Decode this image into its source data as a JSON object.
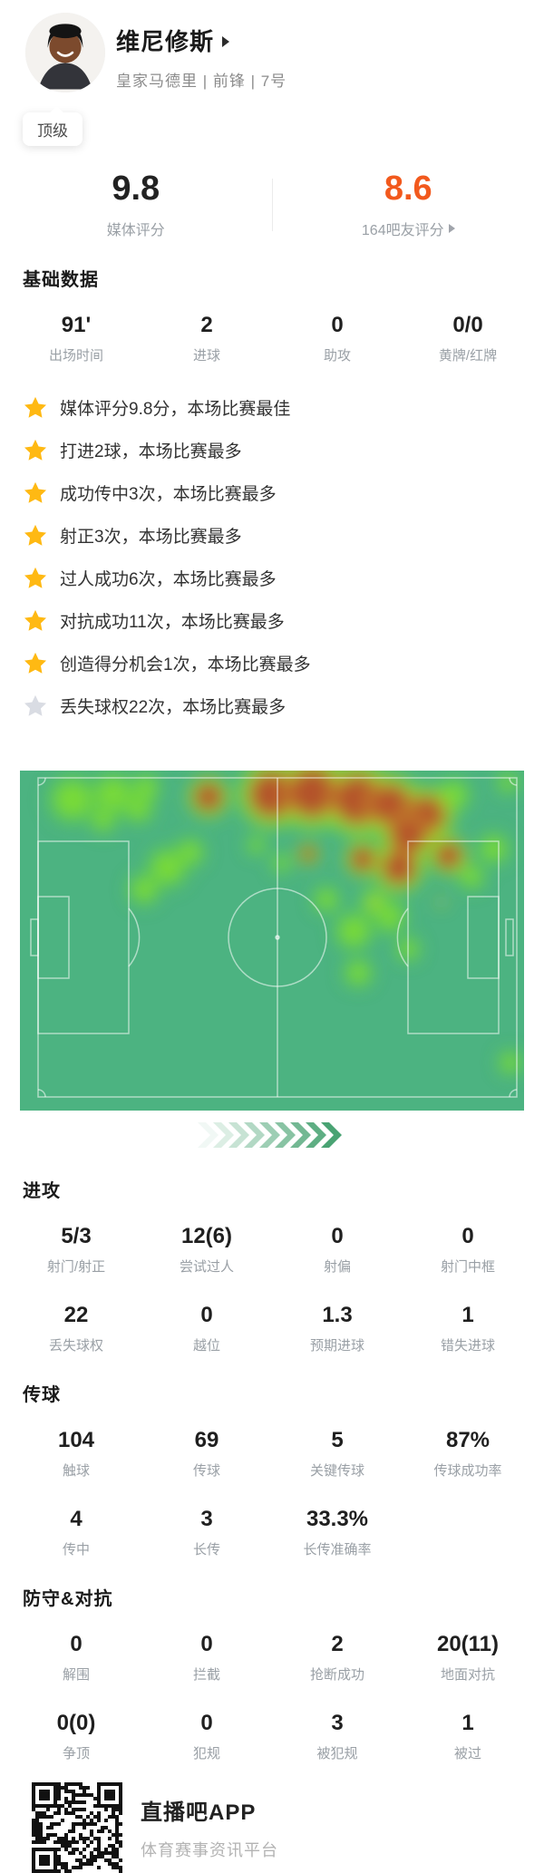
{
  "colors": {
    "accent_orange": "#f2591d",
    "star_gold": "#ffb913",
    "star_gray": "#d9dce3",
    "chevron_green": "#3f9e6b",
    "pitch_green": "#4cb381",
    "heat_low": "#57c94d",
    "heat_mid": "#7ede31",
    "heat_ring": "#cfae2a",
    "heat_high": "#b5502c",
    "heat_dot": "#d7c92f"
  },
  "player": {
    "name": "维尼修斯",
    "meta": "皇家马德里 | 前锋 | 7号",
    "badge": "顶级"
  },
  "ratings": {
    "media": {
      "value": "9.8",
      "label": "媒体评分"
    },
    "fans": {
      "value": "8.6",
      "label": "164吧友评分"
    }
  },
  "sections": {
    "basic": {
      "title": "基础数据",
      "stats": [
        {
          "value": "91'",
          "label": "出场时间"
        },
        {
          "value": "2",
          "label": "进球"
        },
        {
          "value": "0",
          "label": "助攻"
        },
        {
          "value": "0/0",
          "label": "黄牌/红牌"
        }
      ]
    },
    "attack": {
      "title": "进攻",
      "stats": [
        {
          "value": "5/3",
          "label": "射门/射正"
        },
        {
          "value": "12(6)",
          "label": "尝试过人"
        },
        {
          "value": "0",
          "label": "射偏"
        },
        {
          "value": "0",
          "label": "射门中框"
        },
        {
          "value": "22",
          "label": "丢失球权"
        },
        {
          "value": "0",
          "label": "越位"
        },
        {
          "value": "1.3",
          "label": "预期进球"
        },
        {
          "value": "1",
          "label": "错失进球"
        }
      ]
    },
    "passing": {
      "title": "传球",
      "stats": [
        {
          "value": "104",
          "label": "触球"
        },
        {
          "value": "69",
          "label": "传球"
        },
        {
          "value": "5",
          "label": "关键传球"
        },
        {
          "value": "87%",
          "label": "传球成功率"
        },
        {
          "value": "4",
          "label": "传中"
        },
        {
          "value": "3",
          "label": "长传"
        },
        {
          "value": "33.3%",
          "label": "长传准确率"
        }
      ]
    },
    "defense": {
      "title": "防守&对抗",
      "stats": [
        {
          "value": "0",
          "label": "解围"
        },
        {
          "value": "0",
          "label": "拦截"
        },
        {
          "value": "2",
          "label": "抢断成功"
        },
        {
          "value": "20(11)",
          "label": "地面对抗"
        },
        {
          "value": "0(0)",
          "label": "争顶"
        },
        {
          "value": "0",
          "label": "犯规"
        },
        {
          "value": "3",
          "label": "被犯规"
        },
        {
          "value": "1",
          "label": "被过"
        }
      ]
    }
  },
  "highlights": [
    {
      "text": "媒体评分9.8分，本场比赛最佳",
      "star": "gold"
    },
    {
      "text": "打进2球，本场比赛最多",
      "star": "gold"
    },
    {
      "text": "成功传中3次，本场比赛最多",
      "star": "gold"
    },
    {
      "text": "射正3次，本场比赛最多",
      "star": "gold"
    },
    {
      "text": "过人成功6次，本场比赛最多",
      "star": "gold"
    },
    {
      "text": "对抗成功11次，本场比赛最多",
      "star": "gold"
    },
    {
      "text": "创造得分机会1次，本场比赛最多",
      "star": "gold"
    },
    {
      "text": "丢失球权22次，本场比赛最多",
      "star": "gray"
    }
  ],
  "heatmap": {
    "type": "heatmap",
    "description": "player position heatmap on horizontal football pitch, activity concentrated in attacking right half near top touchline",
    "chevron_count": 9,
    "points": [
      {
        "x": 10.4,
        "y": 8.5,
        "r": 20,
        "level": "green"
      },
      {
        "x": 18.5,
        "y": 7.0,
        "r": 18,
        "level": "green"
      },
      {
        "x": 23.5,
        "y": 11.0,
        "r": 13,
        "level": "green"
      },
      {
        "x": 16.5,
        "y": 14.5,
        "r": 11,
        "level": "green"
      },
      {
        "x": 25.0,
        "y": 5.0,
        "r": 12,
        "level": "green"
      },
      {
        "x": 29.3,
        "y": 28.5,
        "r": 17,
        "level": "green"
      },
      {
        "x": 24.6,
        "y": 35.0,
        "r": 13,
        "level": "green"
      },
      {
        "x": 33.8,
        "y": 24.0,
        "r": 12,
        "level": "green"
      },
      {
        "x": 46.9,
        "y": 21.9,
        "r": 8,
        "level": "green"
      },
      {
        "x": 51.8,
        "y": 27.2,
        "r": 8,
        "level": "green"
      },
      {
        "x": 60.8,
        "y": 37.9,
        "r": 11,
        "level": "green"
      },
      {
        "x": 66.2,
        "y": 47.2,
        "r": 16,
        "level": "green"
      },
      {
        "x": 67.1,
        "y": 59.5,
        "r": 12,
        "level": "green"
      },
      {
        "x": 73.4,
        "y": 43.0,
        "r": 14,
        "level": "green"
      },
      {
        "x": 70.3,
        "y": 38.7,
        "r": 12,
        "level": "green"
      },
      {
        "x": 81.5,
        "y": 15.2,
        "r": 16,
        "level": "green"
      },
      {
        "x": 86.0,
        "y": 7.2,
        "r": 14,
        "level": "green"
      },
      {
        "x": 94.0,
        "y": 23.0,
        "r": 13,
        "level": "green"
      },
      {
        "x": 89.6,
        "y": 31.2,
        "r": 11,
        "level": "green"
      },
      {
        "x": 96.8,
        "y": 3.5,
        "r": 9,
        "level": "green"
      },
      {
        "x": 97.3,
        "y": 85.9,
        "r": 10,
        "level": "green"
      },
      {
        "x": 77.0,
        "y": 52.5,
        "r": 10,
        "level": "green"
      },
      {
        "x": 37.4,
        "y": 7.7,
        "r": 15,
        "level": "red"
      },
      {
        "x": 50.0,
        "y": 7.0,
        "r": 24,
        "level": "red"
      },
      {
        "x": 58.0,
        "y": 6.5,
        "r": 26,
        "level": "red"
      },
      {
        "x": 67.0,
        "y": 8.5,
        "r": 26,
        "level": "red"
      },
      {
        "x": 73.4,
        "y": 10.0,
        "r": 22,
        "level": "red"
      },
      {
        "x": 80.6,
        "y": 13.0,
        "r": 20,
        "level": "red"
      },
      {
        "x": 77.0,
        "y": 19.0,
        "r": 20,
        "level": "red"
      },
      {
        "x": 85.0,
        "y": 25.0,
        "r": 14,
        "level": "red"
      },
      {
        "x": 75.2,
        "y": 28.5,
        "r": 18,
        "level": "red"
      },
      {
        "x": 68.0,
        "y": 26.0,
        "r": 13,
        "level": "red"
      },
      {
        "x": 57.2,
        "y": 24.5,
        "r": 8,
        "level": "red"
      },
      {
        "x": 70.3,
        "y": 38.7,
        "r": 4,
        "level": "dot"
      },
      {
        "x": 83.6,
        "y": 38.7,
        "r": 4,
        "level": "dot"
      }
    ]
  },
  "footer": {
    "app_name": "直播吧APP",
    "slogan": "体育赛事资讯平台"
  }
}
